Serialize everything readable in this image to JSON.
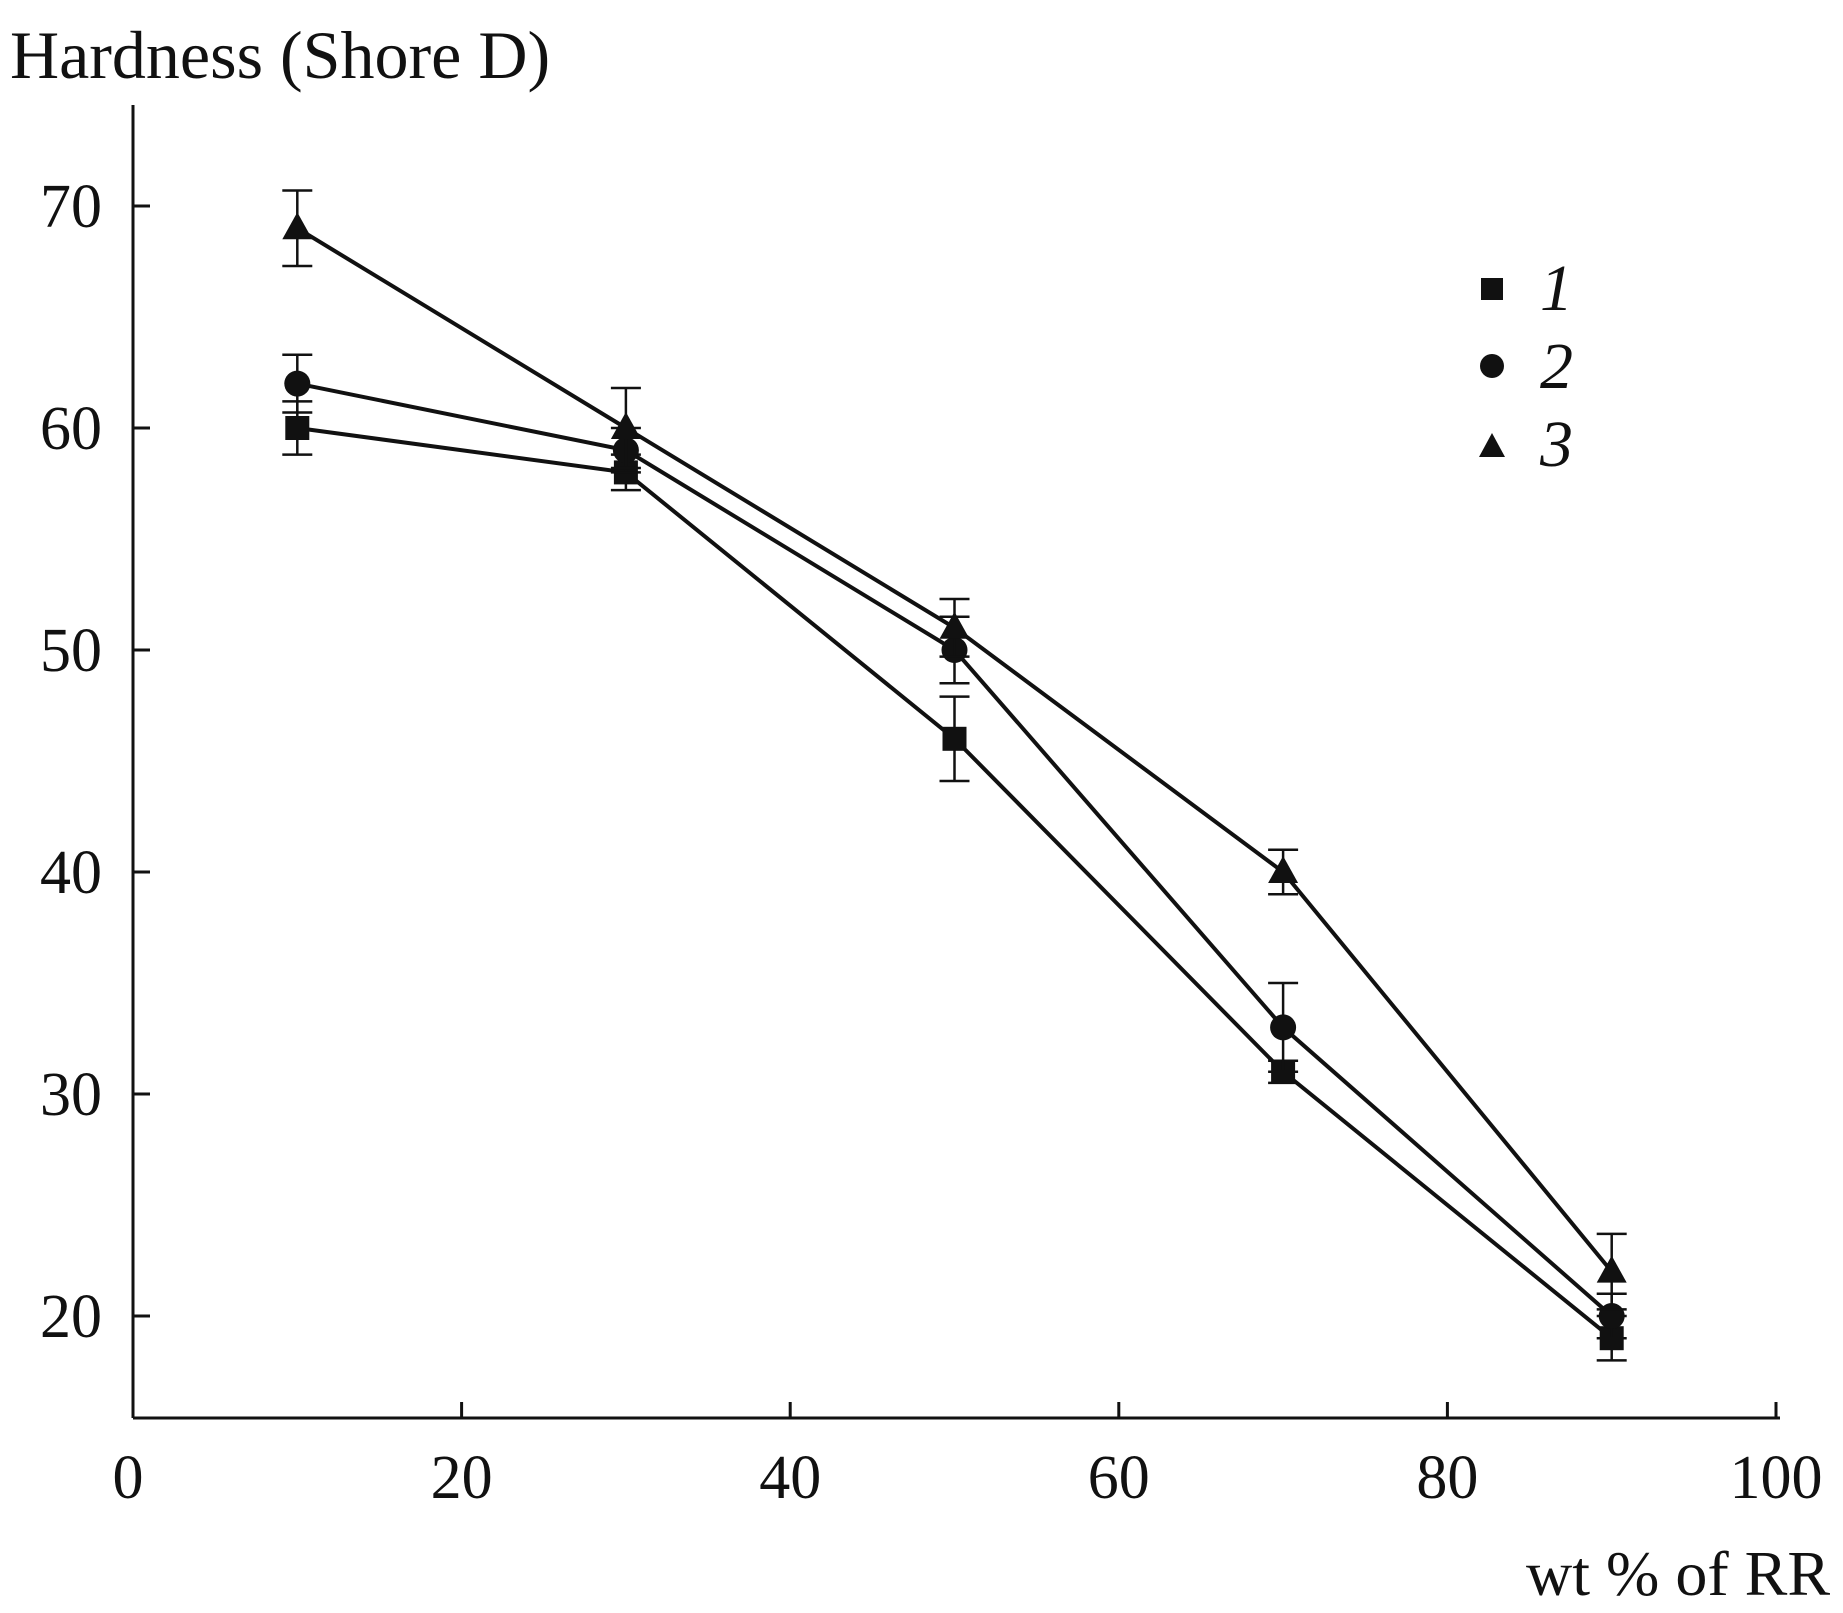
{
  "chart_data": {
    "type": "line",
    "title": "Hardness (Shore D)",
    "ylabel": "Hardness (Shore D)",
    "xlabel": "wt % of RR",
    "xlim": [
      0,
      100
    ],
    "ylim": [
      15,
      74
    ],
    "x_ticks": [
      "0",
      "20",
      "40",
      "60",
      "80",
      "100"
    ],
    "y_ticks": [
      "20",
      "30",
      "40",
      "50",
      "60",
      "70"
    ],
    "legend_position": "top-right",
    "x": [
      10,
      30,
      50,
      70,
      90
    ],
    "series": [
      {
        "name": "1",
        "marker": "square",
        "values": [
          60,
          58,
          46,
          31,
          19
        ],
        "errors": [
          1.2,
          0.8,
          1.9,
          0.5,
          1.0
        ]
      },
      {
        "name": "2",
        "marker": "circle",
        "values": [
          62,
          59,
          50,
          33,
          20
        ],
        "errors": [
          1.3,
          1.0,
          1.5,
          2.0,
          1.0
        ]
      },
      {
        "name": "3",
        "marker": "triangle",
        "values": [
          69,
          60,
          51,
          40,
          22
        ],
        "errors": [
          1.7,
          1.8,
          1.3,
          1.0,
          1.7
        ]
      }
    ]
  }
}
